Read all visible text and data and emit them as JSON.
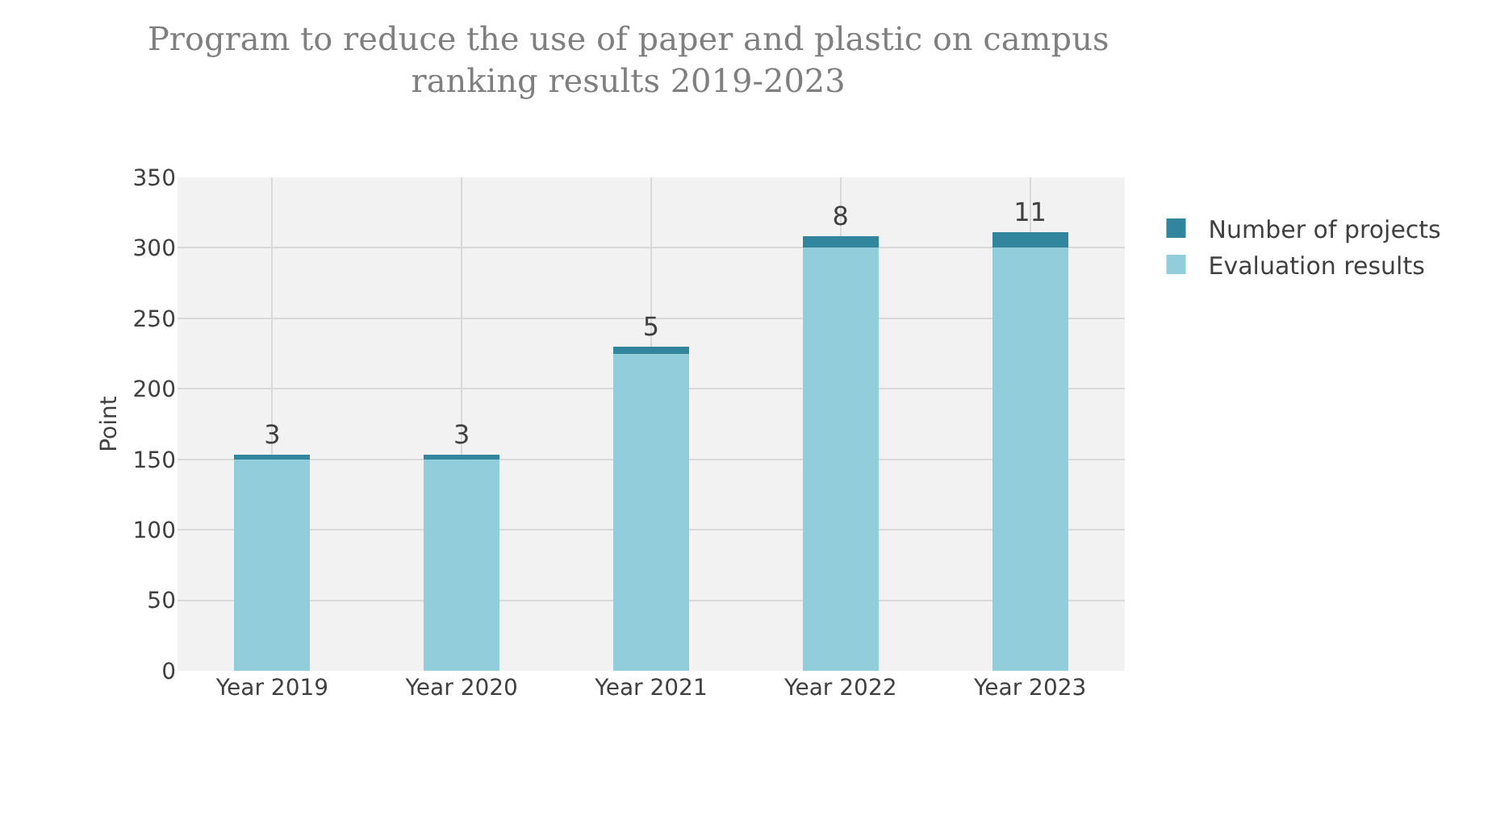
{
  "chart_data": {
    "type": "bar",
    "stacked": true,
    "title": "Program to reduce the use of paper and plastic on campus\nranking results 2019-2023",
    "ylabel": "Point",
    "categories": [
      "Year 2019",
      "Year 2020",
      "Year 2021",
      "Year 2022",
      "Year 2023"
    ],
    "series": [
      {
        "name": "Evaluation results",
        "color": "#92cddc",
        "values": [
          150,
          150,
          225,
          300,
          300
        ]
      },
      {
        "name": "Number of projects",
        "color": "#31859c",
        "values": [
          3,
          3,
          5,
          8,
          11
        ],
        "value_labels": [
          "3",
          "3",
          "5",
          "8",
          "11"
        ]
      }
    ],
    "ylim": [
      0,
      350
    ],
    "yticks": [
      0,
      50,
      100,
      150,
      200,
      250,
      300,
      350
    ],
    "grid": true,
    "legend": "right"
  }
}
